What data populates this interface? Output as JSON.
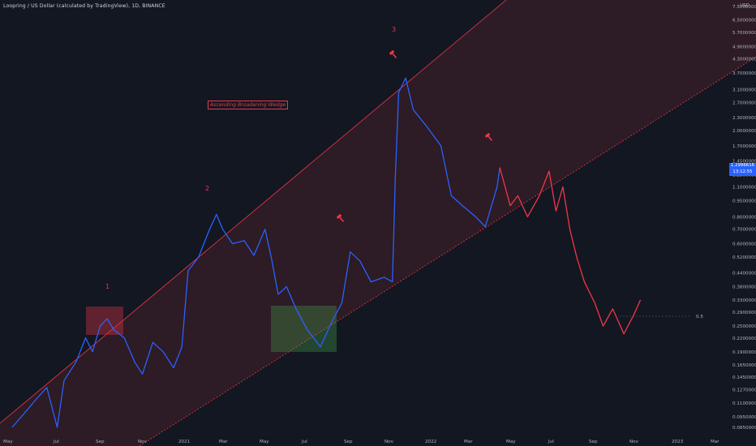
{
  "header": {
    "title": "Loopring / US Dollar (calculated by TradingView), 1D, BINANCE"
  },
  "annotations": {
    "pattern_label": "Ascending Broadening Wedge",
    "wave_labels": [
      "1",
      "2",
      "3"
    ],
    "level_label": "0.5"
  },
  "price_tag": {
    "price": "1.2996616",
    "countdown": "13:12:55"
  },
  "chart_data": {
    "type": "line",
    "currency": "USD",
    "y_scale": "log",
    "ylim": [
      0.08,
      7.5
    ],
    "y_ticks": [
      "7.50000000",
      "6.50000000",
      "5.70000000",
      "4.90000000",
      "4.30000000",
      "3.70000000",
      "3.10000000",
      "2.70000000",
      "2.30000000",
      "2.00000000",
      "1.70000000",
      "1.45000000",
      "1.25000000",
      "1.10000000",
      "0.95000000",
      "0.80000000",
      "0.70000000",
      "0.60000000",
      "0.52000000",
      "0.44000000",
      "0.38000000",
      "0.33000000",
      "0.29000000",
      "0.25000000",
      "0.22000000",
      "0.19000000",
      "0.16500000",
      "0.14500000",
      "0.12700000",
      "0.11000000",
      "0.09500000",
      "0.08500000"
    ],
    "x_ticks": [
      "May",
      "Jul",
      "Sep",
      "Nov",
      "2021",
      "Mar",
      "May",
      "Jul",
      "Sep",
      "Nov",
      "2022",
      "Mar",
      "May",
      "Jul",
      "Sep",
      "Nov",
      "2023",
      "Mar"
    ],
    "series": [
      {
        "color": "#2962ff",
        "points": [
          [
            "2020-05-01",
            0.085
          ],
          [
            "2020-05-20",
            0.1
          ],
          [
            "2020-06-05",
            0.115
          ],
          [
            "2020-06-20",
            0.13
          ],
          [
            "2020-07-05",
            0.085
          ],
          [
            "2020-07-15",
            0.14
          ],
          [
            "2020-08-01",
            0.17
          ],
          [
            "2020-08-15",
            0.22
          ],
          [
            "2020-08-25",
            0.19
          ],
          [
            "2020-09-05",
            0.25
          ],
          [
            "2020-09-15",
            0.27
          ],
          [
            "2020-09-25",
            0.24
          ],
          [
            "2020-10-10",
            0.22
          ],
          [
            "2020-10-25",
            0.17
          ],
          [
            "2020-11-05",
            0.15
          ],
          [
            "2020-11-20",
            0.21
          ],
          [
            "2020-12-05",
            0.19
          ],
          [
            "2020-12-20",
            0.16
          ],
          [
            "2021-01-01",
            0.2
          ],
          [
            "2021-01-10",
            0.45
          ],
          [
            "2021-01-25",
            0.52
          ],
          [
            "2021-02-10",
            0.7
          ],
          [
            "2021-02-20",
            0.82
          ],
          [
            "2021-03-01",
            0.7
          ],
          [
            "2021-03-15",
            0.6
          ],
          [
            "2021-04-01",
            0.62
          ],
          [
            "2021-04-15",
            0.53
          ],
          [
            "2021-05-01",
            0.7
          ],
          [
            "2021-05-10",
            0.52
          ],
          [
            "2021-05-20",
            0.35
          ],
          [
            "2021-06-01",
            0.38
          ],
          [
            "2021-06-15",
            0.3
          ],
          [
            "2021-07-01",
            0.24
          ],
          [
            "2021-07-20",
            0.2
          ],
          [
            "2021-08-05",
            0.26
          ],
          [
            "2021-08-20",
            0.32
          ],
          [
            "2021-09-01",
            0.55
          ],
          [
            "2021-09-15",
            0.5
          ],
          [
            "2021-10-01",
            0.4
          ],
          [
            "2021-10-20",
            0.42
          ],
          [
            "2021-11-01",
            0.4
          ],
          [
            "2021-11-05",
            1.2
          ],
          [
            "2021-11-10",
            3.0
          ],
          [
            "2021-11-20",
            3.5
          ],
          [
            "2021-12-01",
            2.5
          ],
          [
            "2021-12-20",
            2.1
          ],
          [
            "2022-01-10",
            1.7
          ],
          [
            "2022-01-25",
            1.0
          ],
          [
            "2022-02-10",
            0.9
          ],
          [
            "2022-03-01",
            0.8
          ],
          [
            "2022-03-15",
            0.72
          ],
          [
            "2022-04-01",
            1.1
          ],
          [
            "2022-04-05",
            1.35
          ]
        ]
      },
      {
        "color": "#f23645",
        "points": [
          [
            "2022-04-05",
            1.35
          ],
          [
            "2022-04-20",
            0.9
          ],
          [
            "2022-05-01",
            1.0
          ],
          [
            "2022-05-15",
            0.8
          ],
          [
            "2022-06-01",
            1.0
          ],
          [
            "2022-06-15",
            1.3
          ],
          [
            "2022-06-25",
            0.85
          ],
          [
            "2022-07-05",
            1.1
          ],
          [
            "2022-07-15",
            0.7
          ],
          [
            "2022-07-25",
            0.52
          ],
          [
            "2022-08-05",
            0.4
          ],
          [
            "2022-08-20",
            0.32
          ],
          [
            "2022-09-01",
            0.25
          ],
          [
            "2022-09-15",
            0.3
          ],
          [
            "2022-10-01",
            0.23
          ],
          [
            "2022-10-15",
            0.28
          ],
          [
            "2022-10-25",
            0.33
          ]
        ]
      }
    ]
  }
}
